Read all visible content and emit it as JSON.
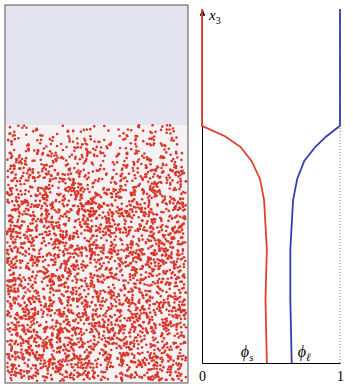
{
  "chart_data": {
    "type": "line",
    "y_label": "x3",
    "xlim": [
      0,
      1
    ],
    "xticks": [
      0,
      1
    ],
    "ylim": [
      0,
      1
    ],
    "yticks": [],
    "tick_labels": "x",
    "series": [
      {
        "name": "ϕs",
        "color": "#e0402e",
        "x": [
          0.47,
          0.46,
          0.47,
          0.45,
          0.42,
          0.36,
          0.28,
          0.17,
          0,
          0
        ],
        "y": [
          0,
          0.18,
          0.32,
          0.46,
          0.52,
          0.57,
          0.61,
          0.64,
          0.67,
          1
        ]
      },
      {
        "name": "ϕℓ",
        "color": "#3b3bb0",
        "x": [
          0.65,
          0.64,
          0.64,
          0.66,
          0.69,
          0.74,
          0.82,
          0.9,
          1,
          1
        ],
        "y": [
          0,
          0.18,
          0.32,
          0.46,
          0.52,
          0.57,
          0.61,
          0.64,
          0.67,
          1
        ]
      }
    ]
  }
}
